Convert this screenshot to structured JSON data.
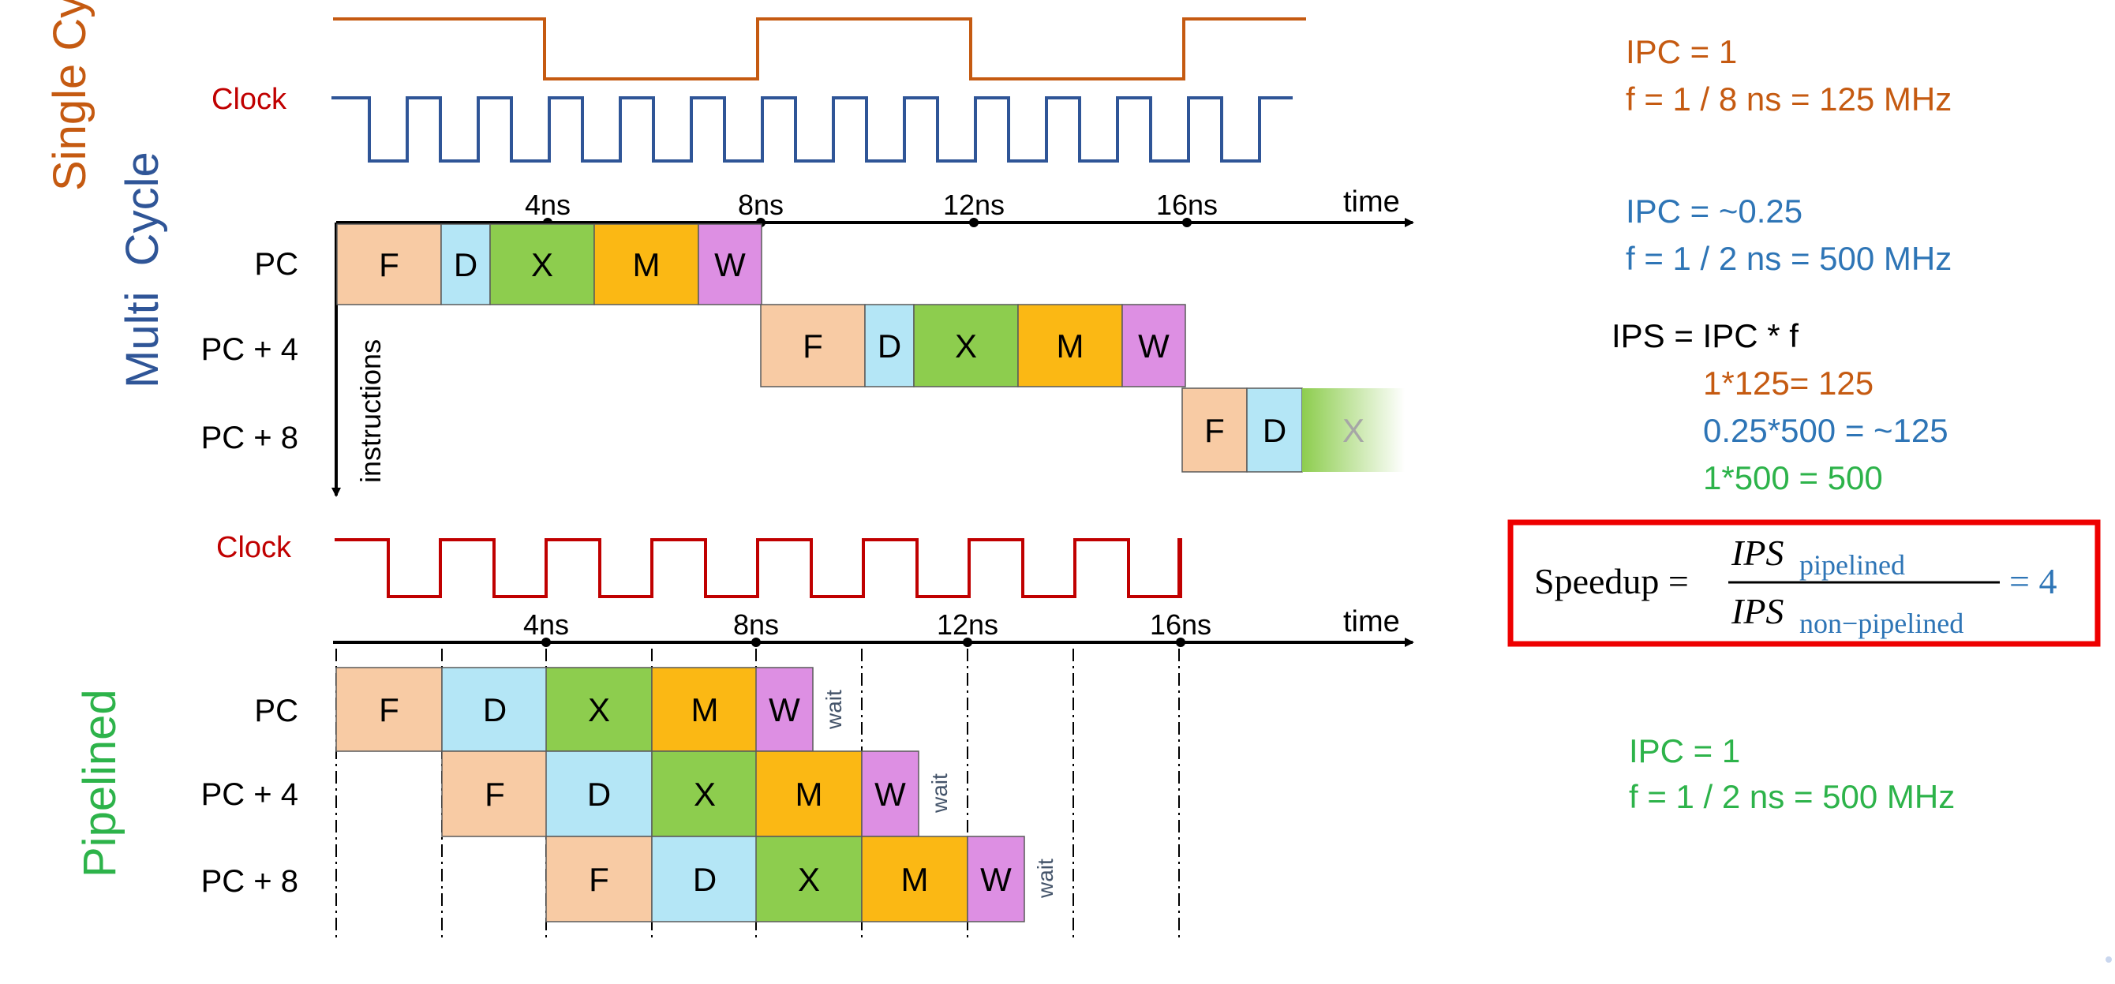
{
  "colors": {
    "single": "#c55a11",
    "multi": "#2f5597",
    "multi_text": "#2e75b6",
    "pipe": "#2db34a",
    "clock_label": "#c00000",
    "stage_F": "#f8cba4",
    "stage_D": "#b4e6f6",
    "stage_X": "#8dcd4e",
    "stage_M": "#fbb814",
    "stage_W": "#dd8fe3",
    "wait": "#44546a",
    "box": "#ee0000"
  },
  "side_labels": {
    "single": "Single Cycle",
    "multi": "Multi  Cycle",
    "pipelined": "Pipelined"
  },
  "clock_label": "Clock",
  "time_label": "time",
  "instructions_label": "instructions",
  "ticks": [
    "4ns",
    "8ns",
    "12ns",
    "16ns"
  ],
  "instr_labels": [
    "PC",
    "PC + 4",
    "PC + 8"
  ],
  "stages": [
    "F",
    "D",
    "X",
    "M",
    "W"
  ],
  "wait_label": "wait",
  "single_stats": {
    "ipc": "IPC = 1",
    "freq": "f = 1 / 8 ns = 125 MHz"
  },
  "multi_stats": {
    "ipc": "IPC = ~0.25",
    "freq": "f = 1 / 2 ns = 500 MHz"
  },
  "ips": {
    "formula": "IPS = IPC * f",
    "single": "1*125= 125",
    "multi": "0.25*500 = ~125",
    "pipe": "1*500 = 500"
  },
  "speedup": {
    "lhs": "Speedup =",
    "num_base": "IPS",
    "num_sub": "pipelined",
    "den_base": "IPS",
    "den_sub": "non−pipelined",
    "rhs": "= 4"
  },
  "pipe_stats": {
    "ipc": "IPC = 1",
    "freq": "f = 1 / 2 ns = 500 MHz"
  }
}
